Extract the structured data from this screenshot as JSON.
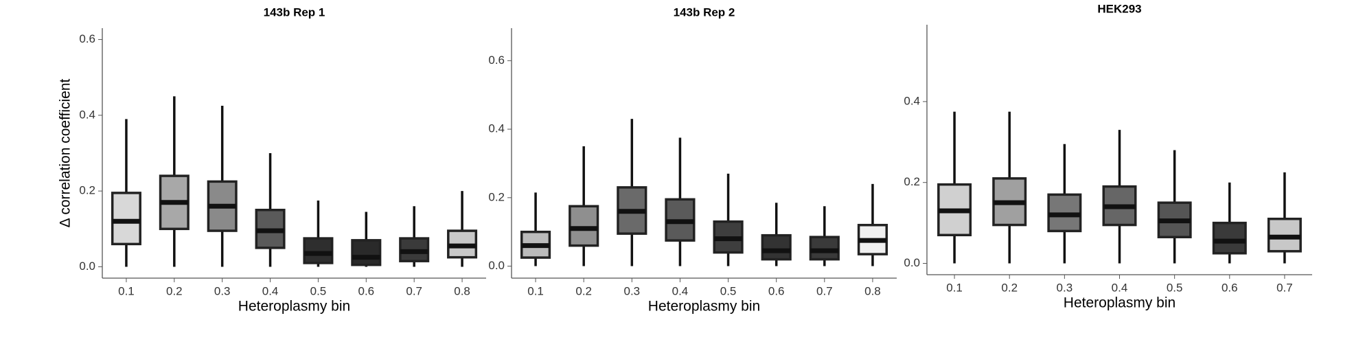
{
  "chart_data": [
    {
      "type": "box",
      "title": "143b Rep 1",
      "x_label": "Heteroplasmy bin",
      "y_label": "Δ correlation coefficient",
      "categories": [
        "0.1",
        "0.2",
        "0.3",
        "0.4",
        "0.5",
        "0.6",
        "0.7",
        "0.8"
      ],
      "whisker_low": [
        0,
        0,
        0,
        0,
        0,
        0,
        0,
        0
      ],
      "q1": [
        0.06,
        0.1,
        0.095,
        0.05,
        0.01,
        0.005,
        0.015,
        0.025
      ],
      "median": [
        0.12,
        0.17,
        0.16,
        0.095,
        0.035,
        0.025,
        0.04,
        0.055
      ],
      "q3": [
        0.195,
        0.24,
        0.225,
        0.15,
        0.075,
        0.07,
        0.075,
        0.095
      ],
      "whisker_high": [
        0.39,
        0.45,
        0.425,
        0.3,
        0.175,
        0.145,
        0.16,
        0.2
      ],
      "colors": [
        "#d8d8d8",
        "#a8a8a8",
        "#8a8a8a",
        "#5a5a5a",
        "#2e2e2e",
        "#2a2a2a",
        "#3a3a3a",
        "#c8c8c8"
      ],
      "ylim": [
        -0.03,
        0.63
      ],
      "yticks": [
        {
          "value": 0,
          "label": "0.0"
        },
        0.2,
        0.4,
        0.6
      ]
    },
    {
      "type": "box",
      "title": "143b Rep 2",
      "x_label": "Heteroplasmy bin",
      "categories": [
        "0.1",
        "0.2",
        "0.3",
        "0.4",
        "0.5",
        "0.6",
        "0.7",
        "0.8"
      ],
      "whisker_low": [
        0,
        0,
        0,
        0,
        0,
        0,
        0,
        0
      ],
      "q1": [
        0.025,
        0.06,
        0.095,
        0.075,
        0.04,
        0.02,
        0.02,
        0.035
      ],
      "median": [
        0.06,
        0.11,
        0.16,
        0.13,
        0.08,
        0.045,
        0.045,
        0.075
      ],
      "q3": [
        0.1,
        0.175,
        0.23,
        0.195,
        0.13,
        0.09,
        0.085,
        0.12
      ],
      "whisker_high": [
        0.215,
        0.35,
        0.43,
        0.375,
        0.27,
        0.185,
        0.175,
        0.24
      ],
      "colors": [
        "#bbbbbb",
        "#8f8f8f",
        "#6a6a6a",
        "#5a5a5a",
        "#3e3e3e",
        "#333333",
        "#3a3a3a",
        "#f0f0f0"
      ],
      "ylim": [
        -0.035,
        0.695
      ],
      "yticks": [
        {
          "value": 0,
          "label": "0.0"
        },
        0.2,
        0.4,
        0.6
      ]
    },
    {
      "type": "box",
      "title": "HEK293",
      "x_label": "Heteroplasmy bin",
      "categories": [
        "0.1",
        "0.2",
        "0.3",
        "0.4",
        "0.5",
        "0.6",
        "0.7"
      ],
      "whisker_low": [
        0,
        0,
        0,
        0,
        0,
        0,
        0
      ],
      "q1": [
        0.07,
        0.095,
        0.08,
        0.095,
        0.065,
        0.025,
        0.03
      ],
      "median": [
        0.13,
        0.15,
        0.12,
        0.14,
        0.105,
        0.055,
        0.065
      ],
      "q3": [
        0.195,
        0.21,
        0.17,
        0.19,
        0.15,
        0.1,
        0.11
      ],
      "whisker_high": [
        0.375,
        0.375,
        0.295,
        0.33,
        0.28,
        0.2,
        0.225
      ],
      "colors": [
        "#d0d0d0",
        "#a0a0a0",
        "#777777",
        "#666666",
        "#555555",
        "#3a3a3a",
        "#c8c8c8"
      ],
      "ylim": [
        -0.028,
        0.59
      ],
      "yticks": [
        {
          "value": 0,
          "label": "0.0"
        },
        0.2,
        0.4
      ]
    }
  ]
}
